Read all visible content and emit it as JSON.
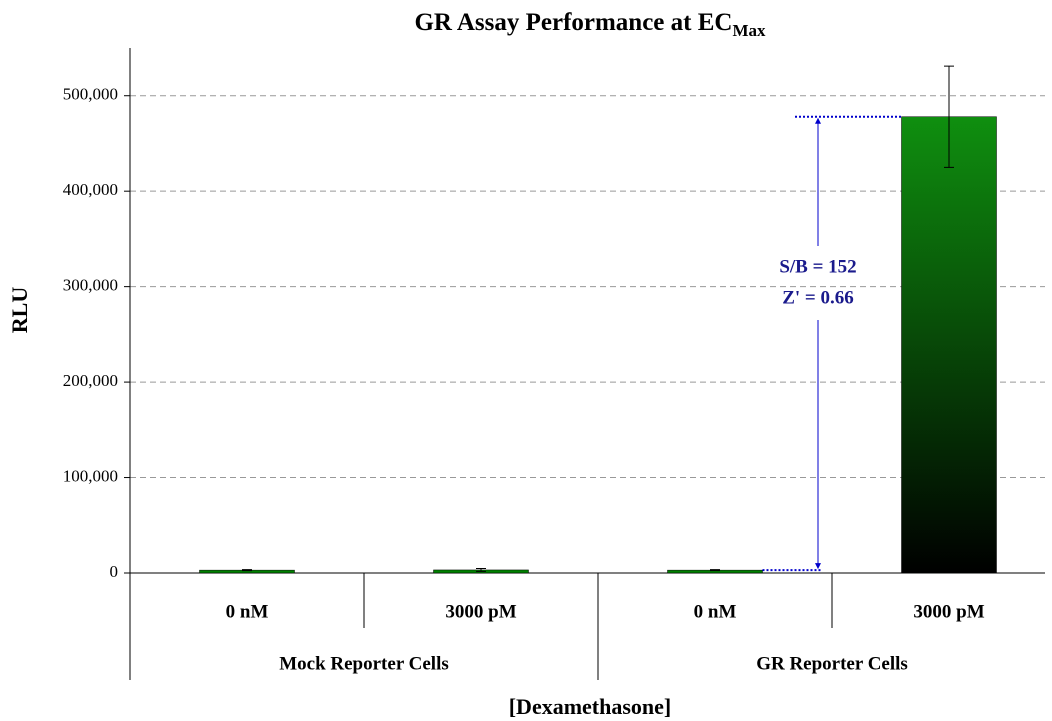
{
  "chart_data": {
    "type": "bar",
    "title": "GR Assay Performance at EC",
    "title_subscript": "Max",
    "y_label": "RLU",
    "x_label": "[Dexamethasone]",
    "categories": [
      "0 nM",
      "3000 pM",
      "0 nM",
      "3000 pM"
    ],
    "groups": [
      "Mock Reporter Cells",
      "GR Reporter Cells"
    ],
    "values": [
      3000,
      3200,
      3000,
      478000
    ],
    "errors": [
      500,
      1500,
      500,
      53000
    ],
    "color": "#008000",
    "ylim": [
      0,
      550000
    ],
    "yticks": [
      0,
      {
        "value": 100000,
        "label": "100,000"
      },
      {
        "value": 200000,
        "label": "200,000"
      },
      {
        "value": 300000,
        "label": "300,000"
      },
      {
        "value": 400000,
        "label": "400,000"
      },
      {
        "value": 500000,
        "label": "500,000"
      }
    ],
    "grid": true,
    "annotations": [
      "S/B = 152",
      "Z' = 0.66"
    ]
  }
}
